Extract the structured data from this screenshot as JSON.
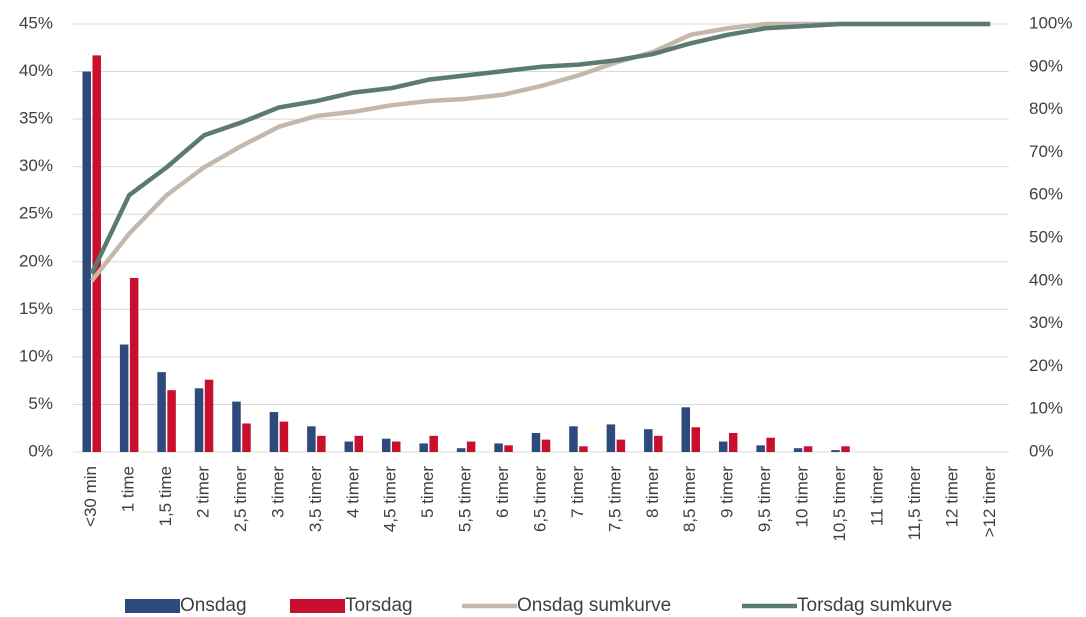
{
  "chart_data": {
    "type": "bar-line",
    "categories": [
      "<30 min",
      "1 time",
      "1,5 time",
      "2 timer",
      "2,5 timer",
      "3 timer",
      "3,5 timer",
      "4 timer",
      "4,5 timer",
      "5 timer",
      "5,5 timer",
      "6 timer",
      "6,5 timer",
      "7 timer",
      "7,5 timer",
      "8 timer",
      "8,5 timer",
      "9 timer",
      "9,5 timer",
      "10 timer",
      "10,5 timer",
      "11 timer",
      "11,5 timer",
      "12 timer",
      ">12 timer"
    ],
    "series": [
      {
        "name": "Onsdag",
        "type": "bar",
        "color": "#2e4a7d",
        "values": [
          40,
          11.3,
          8.4,
          6.7,
          5.3,
          4.2,
          2.7,
          1.1,
          1.4,
          0.9,
          0.4,
          0.9,
          2.0,
          2.7,
          2.9,
          2.4,
          4.7,
          1.1,
          0.7,
          0.4,
          0.2,
          0,
          0,
          0,
          0
        ]
      },
      {
        "name": "Torsdag",
        "type": "bar",
        "color": "#c8102e",
        "values": [
          41.7,
          18.3,
          6.5,
          7.6,
          3.0,
          3.2,
          1.7,
          1.7,
          1.1,
          1.7,
          1.1,
          0.7,
          1.3,
          0.6,
          1.3,
          1.7,
          2.6,
          2.0,
          1.5,
          0.6,
          0.6,
          0,
          0,
          0,
          0
        ]
      },
      {
        "name": "Onsdag sumkurve",
        "type": "line",
        "axis": "y2",
        "color": "#c4b8ad",
        "values": [
          40,
          51,
          60,
          66.5,
          71.5,
          76,
          78.5,
          79.5,
          81,
          82,
          82.5,
          83.5,
          85.5,
          88,
          91,
          93.5,
          97.5,
          99,
          100,
          100,
          100,
          100,
          100,
          100,
          100
        ]
      },
      {
        "name": "Torsdag sumkurve",
        "type": "line",
        "axis": "y2",
        "color": "#5a7a72",
        "values": [
          41.7,
          60,
          66.5,
          74,
          77,
          80.5,
          82,
          84,
          85,
          87,
          88,
          89,
          90,
          90.5,
          91.5,
          93,
          95.5,
          97.5,
          99,
          99.5,
          100,
          100,
          100,
          100,
          100
        ]
      }
    ],
    "ylim": [
      0,
      45
    ],
    "yticks": [
      {
        "value": 0,
        "label": "0%"
      },
      {
        "value": 5,
        "label": "5%"
      },
      {
        "value": 10,
        "label": "10%"
      },
      {
        "value": 15,
        "label": "15%"
      },
      {
        "value": 20,
        "label": "20%"
      },
      {
        "value": 25,
        "label": "25%"
      },
      {
        "value": 30,
        "label": "30%"
      },
      {
        "value": 35,
        "label": "35%"
      },
      {
        "value": 40,
        "label": "40%"
      },
      {
        "value": 45,
        "label": "45%"
      }
    ],
    "y2lim": [
      0,
      100
    ],
    "y2ticks": [
      {
        "value": 0,
        "label": "0%"
      },
      {
        "value": 10,
        "label": "10%"
      },
      {
        "value": 20,
        "label": "20%"
      },
      {
        "value": 30,
        "label": "30%"
      },
      {
        "value": 40,
        "label": "40%"
      },
      {
        "value": 50,
        "label": "50%"
      },
      {
        "value": 60,
        "label": "60%"
      },
      {
        "value": 70,
        "label": "70%"
      },
      {
        "value": 80,
        "label": "80%"
      },
      {
        "value": 90,
        "label": "90%"
      },
      {
        "value": 100,
        "label": "100%"
      }
    ],
    "grid": true,
    "legend": "bottom"
  }
}
